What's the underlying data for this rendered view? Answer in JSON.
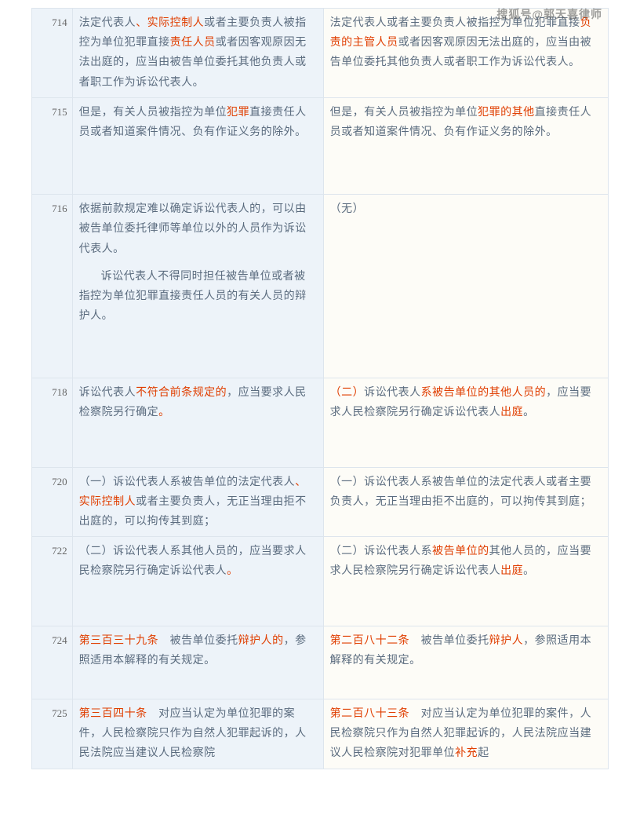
{
  "watermark": "搜狐号@郭天喜律师",
  "rows": [
    {
      "num": "714",
      "left": [
        {
          "t": "法定代表人"
        },
        {
          "t": "、实际控制人",
          "hl": true
        },
        {
          "t": "或者主要负责人被指控为单位犯罪直接"
        },
        {
          "t": "责任人员",
          "hl": true
        },
        {
          "t": "或者因客观原因无法出庭的，应当由被告单位委托其他负责人或者职工作为诉讼代表人。"
        }
      ],
      "right": [
        {
          "t": "法定代表人或者主要负责人被指控为单位犯罪直接"
        },
        {
          "t": "负责的主管人员",
          "hl": true
        },
        {
          "t": "或者因客观原因无法出庭的，应当由被告单位委托其他负责人或者职工作为诉讼代表人。"
        }
      ]
    },
    {
      "num": "715",
      "left": [
        {
          "t": "但是，有关人员被指控为单位"
        },
        {
          "t": "犯罪",
          "hl": true
        },
        {
          "t": "直接责任人员或者知道案件情况、负有作证义务的除外。"
        }
      ],
      "right": [
        {
          "t": "但是，有关人员被指控为单位"
        },
        {
          "t": "犯罪的其他",
          "hl": true
        },
        {
          "t": "直接责任人员或者知道案件情况、负有作证义务的除外。"
        }
      ],
      "leftExtraHeight": 60
    },
    {
      "num": "716",
      "left": [
        {
          "t": "依据前款规定难以确定诉讼代表人的，可以由被告单位委托律师等单位以外的人员作为诉讼代表人。"
        },
        {
          "t": "诉讼代表人不得同时担任被告单位或者被指控为单位犯罪直接责任人员的有关人员的辩护人。",
          "indent": true
        }
      ],
      "right": [
        {
          "t": "（无）"
        }
      ],
      "leftExtraHeight": 60
    },
    {
      "num": "718",
      "left": [
        {
          "t": "诉讼代表人"
        },
        {
          "t": "不符合前条规定的",
          "hl": true
        },
        {
          "t": "，应当要求人民检察院另行确定"
        },
        {
          "t": "。",
          "hl": true
        }
      ],
      "right": [
        {
          "t": "（二）",
          "hl": true
        },
        {
          "t": "诉讼代表人"
        },
        {
          "t": "系被告单位的其他人员的",
          "hl": true
        },
        {
          "t": "，应当要求人民检察院另行确定诉讼代表人"
        },
        {
          "t": "出庭",
          "hl": true
        },
        {
          "t": "。"
        }
      ],
      "leftExtraHeight": 50
    },
    {
      "num": "720",
      "left": [
        {
          "t": "（一）诉讼代表人系被告单位的法定代表人"
        },
        {
          "t": "、实际控制人",
          "hl": true
        },
        {
          "t": "或者主要负责人，无正当理由拒不出庭的，可以拘传其到庭；"
        }
      ],
      "right": [
        {
          "t": "（一）诉讼代表人系被告单位的法定代表人或者主要负责人，无正当理由拒不出庭的，可以拘传其到庭；"
        }
      ]
    },
    {
      "num": "722",
      "left": [
        {
          "t": "（二）诉讼代表人系其他人员的，应当要求人民检察院另行确定诉讼代表人"
        },
        {
          "t": "。",
          "hl": true
        }
      ],
      "right": [
        {
          "t": "（二）诉讼代表人系"
        },
        {
          "t": "被告单位的",
          "hl": true
        },
        {
          "t": "其他人员的，应当要求人民检察院另行确定诉讼代表人"
        },
        {
          "t": "出庭",
          "hl": true
        },
        {
          "t": "。"
        }
      ],
      "leftExtraHeight": 50
    },
    {
      "num": "724",
      "left": [
        {
          "t": "第三百三十九条",
          "hl": true
        },
        {
          "t": "　被告单位委托"
        },
        {
          "t": "辩护人的",
          "hl": true
        },
        {
          "t": "，参照适用本解释的有关规定。"
        }
      ],
      "right": [
        {
          "t": "第二百八十二条",
          "hl": true
        },
        {
          "t": "　被告单位委托"
        },
        {
          "t": "辩护人",
          "hl": true
        },
        {
          "t": "，参照适用本解释的有关规定。"
        }
      ],
      "leftExtraHeight": 30
    },
    {
      "num": "725",
      "left": [
        {
          "t": "第三百四十条",
          "hl": true
        },
        {
          "t": "　对应当认定为单位犯罪的案件，人民检察院只作为自然人犯罪起诉的，人民法院应当建议人民检察院"
        }
      ],
      "right": [
        {
          "t": "第二百八十三条",
          "hl": true
        },
        {
          "t": "　对应当认定为单位犯罪的案件，人民检察院只作为自然人犯罪起诉的，人民法院应当建议人民检察院对犯罪单位"
        },
        {
          "t": "补充",
          "hl": true
        },
        {
          "t": "起"
        }
      ]
    }
  ]
}
